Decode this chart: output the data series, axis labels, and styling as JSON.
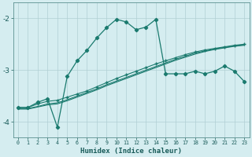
{
  "xlabel": "Humidex (Indice chaleur)",
  "background_color": "#d5edf0",
  "grid_color": "#b0cfd4",
  "line_color": "#1a7a6e",
  "xlim": [
    -0.5,
    23.5
  ],
  "ylim": [
    -4.3,
    -1.7
  ],
  "xticks": [
    0,
    1,
    2,
    3,
    4,
    5,
    6,
    7,
    8,
    9,
    10,
    11,
    12,
    13,
    14,
    15,
    16,
    17,
    18,
    19,
    20,
    21,
    22,
    23
  ],
  "yticks": [
    -4,
    -3,
    -2
  ],
  "series1_y": [
    -3.72,
    -3.72,
    -3.62,
    -3.55,
    -4.1,
    -3.12,
    -2.82,
    -2.62,
    -2.38,
    -2.18,
    -2.02,
    -2.07,
    -2.22,
    -2.17,
    -2.02,
    -3.07,
    -3.07,
    -3.07,
    -3.02,
    -3.07,
    -3.02,
    -2.92,
    -3.02,
    -3.22
  ],
  "series2_y": [
    -3.72,
    -3.72,
    -3.65,
    -3.6,
    -3.58,
    -3.52,
    -3.46,
    -3.4,
    -3.32,
    -3.24,
    -3.16,
    -3.09,
    -3.02,
    -2.95,
    -2.88,
    -2.82,
    -2.76,
    -2.7,
    -2.65,
    -2.61,
    -2.58,
    -2.55,
    -2.52,
    -2.5
  ],
  "series3_y": [
    -3.74,
    -3.74,
    -3.7,
    -3.65,
    -3.63,
    -3.57,
    -3.5,
    -3.43,
    -3.36,
    -3.28,
    -3.21,
    -3.14,
    -3.07,
    -3.0,
    -2.93,
    -2.86,
    -2.79,
    -2.73,
    -2.67,
    -2.63,
    -2.59,
    -2.56,
    -2.53,
    -2.51
  ],
  "series4_y": [
    -3.75,
    -3.75,
    -3.71,
    -3.67,
    -3.65,
    -3.59,
    -3.52,
    -3.45,
    -3.38,
    -3.3,
    -3.23,
    -3.16,
    -3.09,
    -3.02,
    -2.95,
    -2.88,
    -2.81,
    -2.75,
    -2.69,
    -2.64,
    -2.6,
    -2.57,
    -2.54,
    -2.52
  ]
}
